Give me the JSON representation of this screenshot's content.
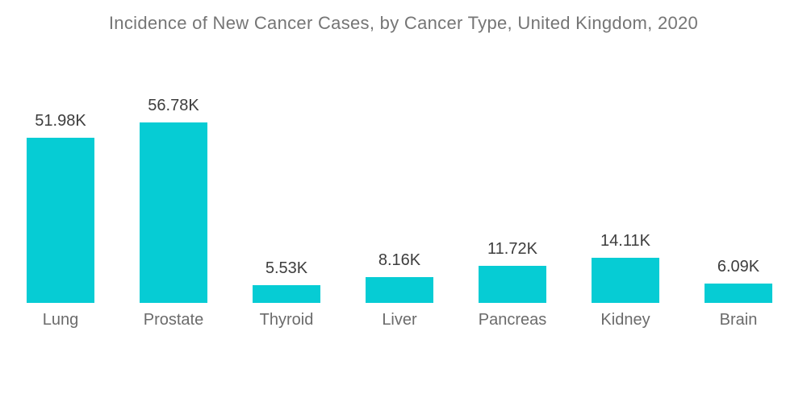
{
  "chart_data": {
    "type": "bar",
    "title": "Incidence of New Cancer Cases, by Cancer Type, United Kingdom, 2020",
    "categories": [
      "Lung",
      "Prostate",
      "Thyroid",
      "Liver",
      "Pancreas",
      "Kidney",
      "Brain"
    ],
    "values": [
      51.98,
      56.78,
      5.53,
      8.16,
      11.72,
      14.11,
      6.09
    ],
    "value_labels": [
      "51.98K",
      "56.78K",
      "5.53K",
      "8.16K",
      "11.72K",
      "14.11K",
      "6.09K"
    ],
    "unit": "K",
    "xlabel": "",
    "ylabel": "",
    "ylim": [
      0,
      60
    ],
    "grid": false,
    "legend_position": "none",
    "orientation": "vertical"
  },
  "colors": {
    "bar_fill": "#06CCD4",
    "title_text": "#757575",
    "value_text": "#3D3D3D",
    "category_text": "#6B6B6B",
    "background": "#FFFFFF"
  }
}
